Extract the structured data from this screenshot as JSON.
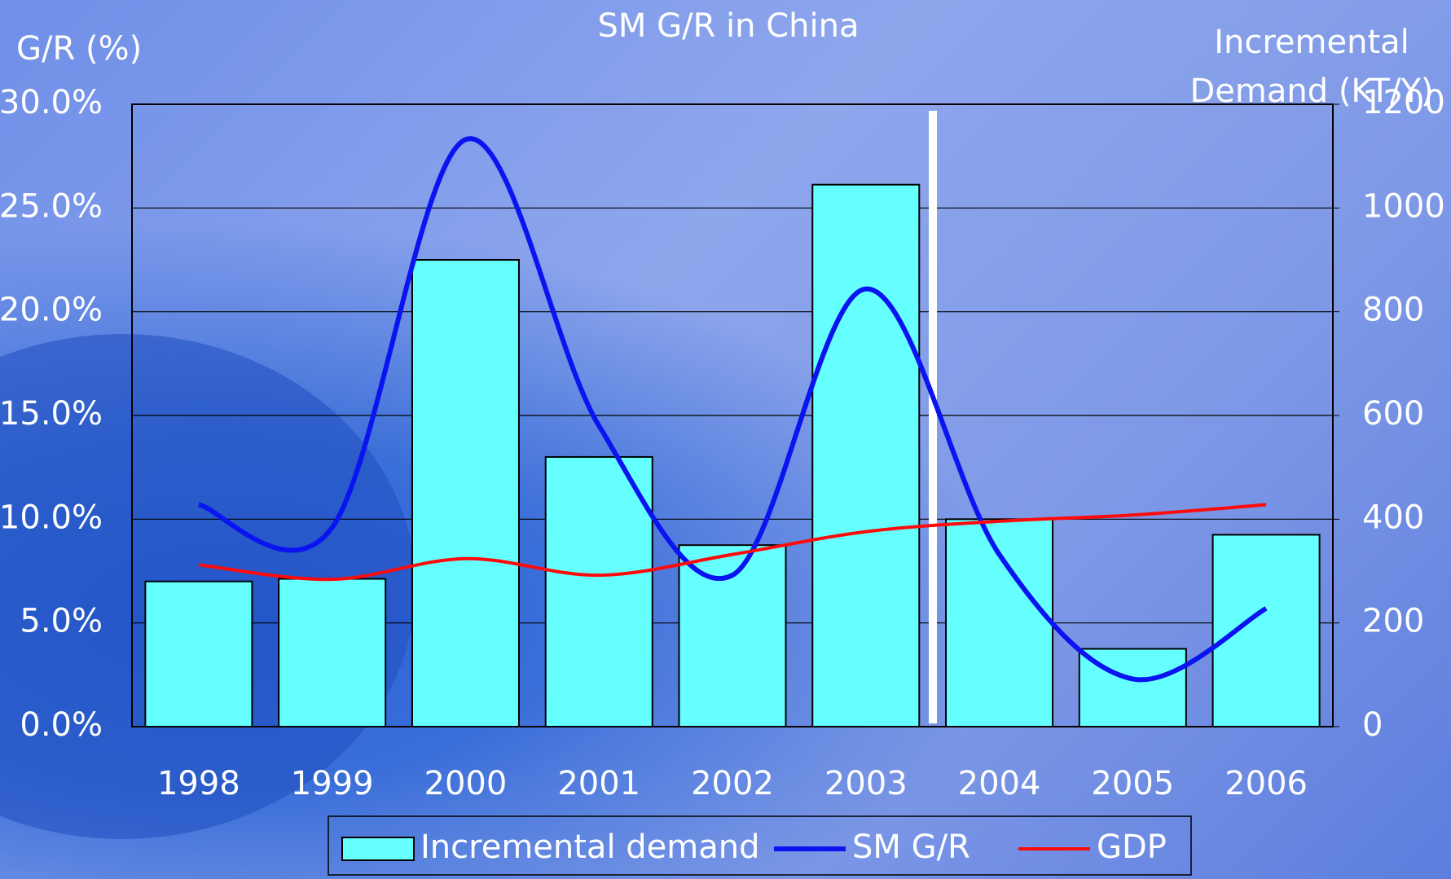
{
  "chart_data": {
    "type": "bar_line",
    "title": "SM G/R in China",
    "ylabel": "G/R (%)",
    "y2label": "Incremental Demand (KT/Y)",
    "categories": [
      "1998",
      "1999",
      "2000",
      "2001",
      "2002",
      "2003",
      "2004",
      "2005",
      "2006"
    ],
    "series": [
      {
        "name": "Incremental demand",
        "type": "bar",
        "axis": "y2",
        "color": "#66ffff",
        "values": [
          280,
          285,
          900,
          520,
          350,
          1045,
          400,
          150,
          370
        ]
      },
      {
        "name": "SM G/R",
        "type": "line",
        "axis": "y",
        "color": "#0a14f0",
        "values": [
          10.7,
          9.6,
          28.3,
          14.5,
          7.3,
          21.1,
          8.3,
          2.3,
          5.7
        ]
      },
      {
        "name": "GDP",
        "type": "line",
        "axis": "y",
        "color": "#ff0a0a",
        "values": [
          7.8,
          7.1,
          8.1,
          7.3,
          8.3,
          9.4,
          9.9,
          10.2,
          10.7
        ]
      }
    ],
    "ylim": [
      0,
      30
    ],
    "yticks": [
      {
        "value": 0,
        "label": "0.0%"
      },
      {
        "value": 5,
        "label": "5.0%"
      },
      {
        "value": 10,
        "label": "10.0%"
      },
      {
        "value": 15,
        "label": "15.0%"
      },
      {
        "value": 20,
        "label": "20.0%"
      },
      {
        "value": 25,
        "label": "25.0%"
      },
      {
        "value": 30,
        "label": "30.0%"
      }
    ],
    "y2lim": [
      0,
      1200
    ],
    "y2ticks": [
      0,
      200,
      400,
      600,
      800,
      1000,
      1200
    ],
    "grid": true
  }
}
